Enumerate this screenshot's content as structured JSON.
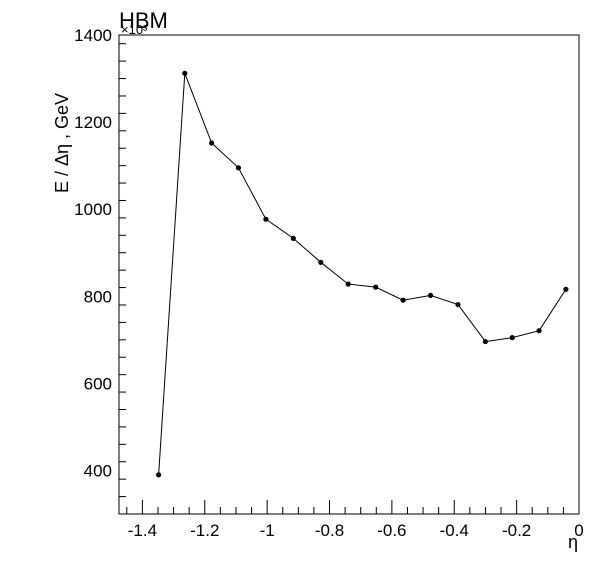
{
  "chart_data": {
    "type": "line",
    "title": "HBM",
    "xlabel": "η",
    "ylabel": "E / Δη ,  GeV",
    "y_multiplier": "×10³",
    "xlim": [
      -1.475,
      0
    ],
    "ylim": [
      300,
      1400
    ],
    "x_ticks": [
      -1.4,
      -1.2,
      -1,
      -0.8,
      -0.6,
      -0.4,
      -0.2,
      0
    ],
    "x_tick_labels": [
      "-1.4",
      "-1.2",
      "-1",
      "-0.8",
      "-0.6",
      "-0.4",
      "-0.2",
      "0"
    ],
    "y_ticks": [
      400,
      600,
      800,
      1000,
      1200,
      1400
    ],
    "y_tick_labels": [
      "400",
      "600",
      "800",
      "1000",
      "1200",
      "1400"
    ],
    "grid": false,
    "series": [
      {
        "x": [
          -1.348,
          -1.264,
          -1.178,
          -1.092,
          -1.004,
          -0.916,
          -0.828,
          -0.74,
          -0.652,
          -0.564,
          -0.476,
          -0.388,
          -0.3,
          -0.214,
          -0.128,
          -0.042
        ],
        "y": [
          390,
          1312,
          1152,
          1095,
          977,
          933,
          878,
          828,
          821,
          791,
          802,
          781,
          696,
          705,
          721,
          816
        ]
      }
    ]
  }
}
